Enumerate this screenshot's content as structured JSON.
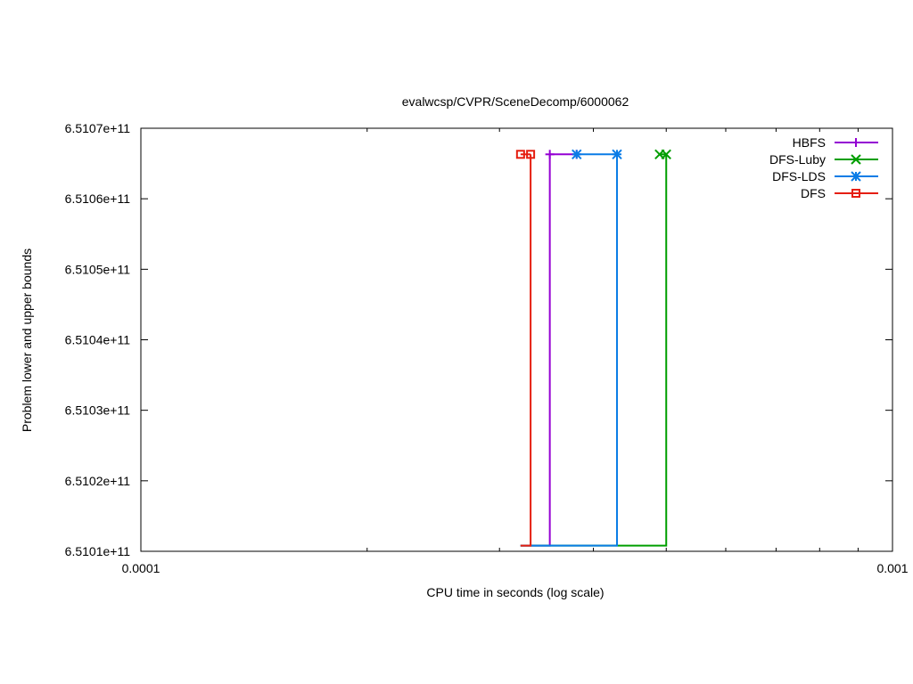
{
  "chart_data": {
    "type": "line",
    "title": "evalwcsp/CVPR/SceneDecomp/6000062",
    "xlabel": "CPU time in seconds (log scale)",
    "ylabel": "Problem lower and upper bounds",
    "xscale": "log",
    "xlim": [
      0.0001,
      0.001
    ],
    "ylim": [
      651010000000,
      651070000000
    ],
    "x_ticks": [
      {
        "value": 0.0001,
        "label": "0.0001"
      },
      {
        "value": 0.001,
        "label": "0.001"
      }
    ],
    "y_ticks": [
      {
        "value": 651010000000,
        "label": "6.5101e+11"
      },
      {
        "value": 651020000000,
        "label": "6.5102e+11"
      },
      {
        "value": 651030000000,
        "label": "6.5103e+11"
      },
      {
        "value": 651040000000,
        "label": "6.5104e+11"
      },
      {
        "value": 651050000000,
        "label": "6.5105e+11"
      },
      {
        "value": 651060000000,
        "label": "6.5106e+11"
      },
      {
        "value": 651070000000,
        "label": "6.5107e+11"
      }
    ],
    "grid": false,
    "legend_position": "top-right",
    "series": [
      {
        "name": "HBFS",
        "color": "#9400d3",
        "marker": "plus",
        "lower": [
          [
            0.00032,
            651010800000
          ],
          [
            0.00035,
            651010800000
          ]
        ],
        "upper": [
          [
            0.00035,
            651066300000
          ],
          [
            0.00038,
            651066300000
          ]
        ],
        "markers": [
          [
            0.00035,
            651066300000
          ],
          [
            0.00038,
            651066300000
          ]
        ]
      },
      {
        "name": "DFS-Luby",
        "color": "#009e00",
        "marker": "cross",
        "lower": [
          [
            0.00032,
            651010800000
          ],
          [
            0.0005,
            651010800000
          ]
        ],
        "upper": [
          [
            0.0005,
            651066300000
          ],
          [
            0.00049,
            651066300000
          ]
        ],
        "markers": [
          [
            0.00049,
            651066300000
          ],
          [
            0.0005,
            651066300000
          ]
        ]
      },
      {
        "name": "DFS-LDS",
        "color": "#0a7ce6",
        "marker": "star",
        "lower": [
          [
            0.00032,
            651010800000
          ],
          [
            0.00043,
            651010800000
          ]
        ],
        "upper": [
          [
            0.00043,
            651066300000
          ],
          [
            0.00038,
            651066300000
          ]
        ],
        "markers": [
          [
            0.00038,
            651066300000
          ],
          [
            0.00043,
            651066300000
          ]
        ]
      },
      {
        "name": "DFS",
        "color": "#e51e10",
        "marker": "square",
        "lower": [
          [
            0.00032,
            651010800000
          ],
          [
            0.00033,
            651010800000
          ]
        ],
        "upper": [
          [
            0.00033,
            651066300000
          ],
          [
            0.00032,
            651066300000
          ]
        ],
        "markers": [
          [
            0.00032,
            651066300000
          ],
          [
            0.00033,
            651066300000
          ]
        ]
      }
    ]
  }
}
